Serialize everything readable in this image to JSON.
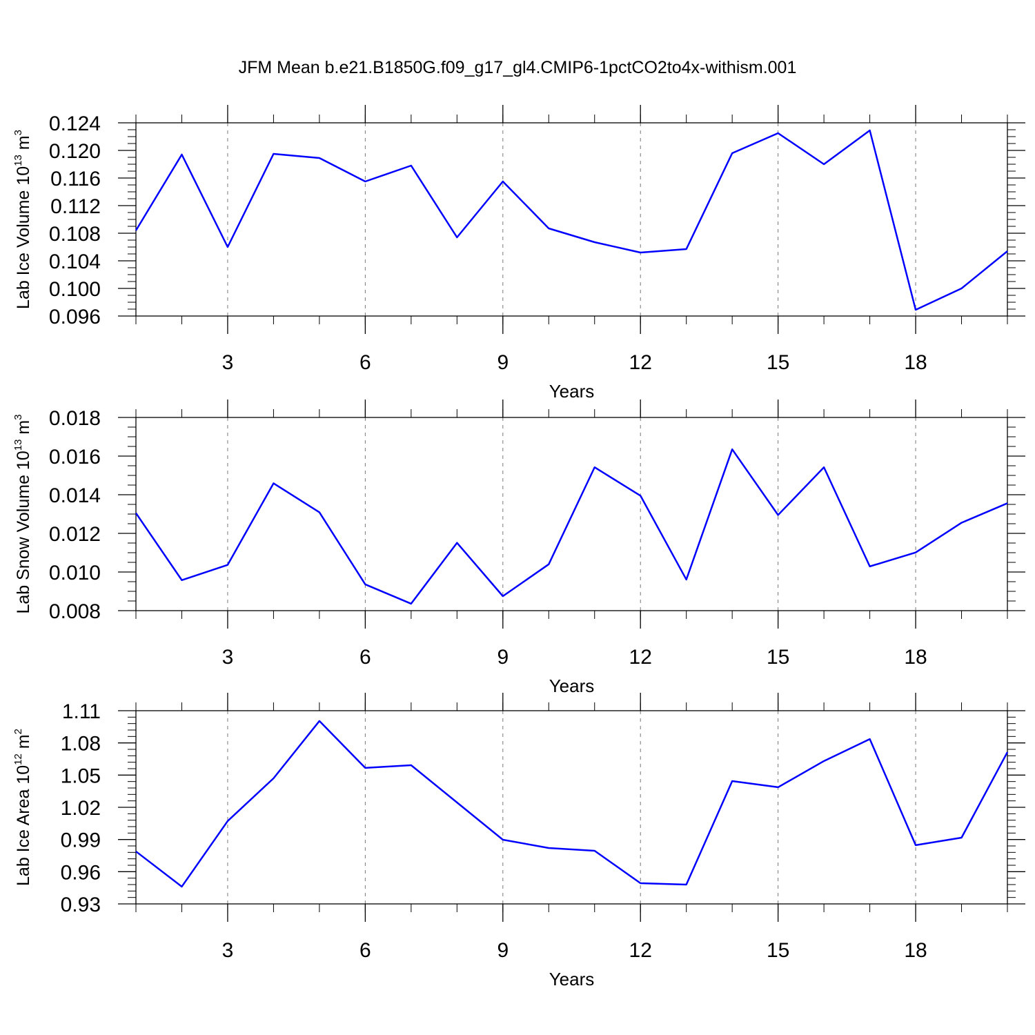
{
  "chart_data": [
    {
      "type": "line",
      "title": "JFM Mean b.e21.B1850G.f09_g17_gl4.CMIP6-1pctCO2to4x-withism.001",
      "ylabel": [
        "Lab Ice Volume 10",
        "13",
        " m",
        "3"
      ],
      "xlabel": "Years",
      "x": [
        1,
        2,
        3,
        4,
        5,
        6,
        7,
        8,
        9,
        10,
        11,
        12,
        13,
        14,
        15,
        16,
        17,
        18,
        19,
        20
      ],
      "values": [
        0.1084,
        0.1194,
        0.106,
        0.1195,
        0.1189,
        0.1155,
        0.1178,
        0.1074,
        0.1155,
        0.1087,
        0.1067,
        0.1052,
        0.1057,
        0.1196,
        0.1225,
        0.118,
        0.1229,
        0.0969,
        0.1,
        0.1054
      ],
      "color": "#0000ff",
      "xlim": [
        1,
        20
      ],
      "xticks": [
        3,
        6,
        9,
        12,
        15,
        18
      ],
      "ylim": [
        0.096,
        0.124
      ],
      "yticks": [
        0.096,
        {
          "value": 0.1,
          "label": "0.100"
        },
        0.104,
        0.108,
        0.112,
        0.116,
        {
          "value": 0.12,
          "label": "0.120"
        },
        0.124
      ],
      "grid": "x"
    },
    {
      "type": "line",
      "ylabel": [
        "Lab Snow Volume 10",
        "13",
        " m",
        "3"
      ],
      "xlabel": "Years",
      "x": [
        1,
        2,
        3,
        4,
        5,
        6,
        7,
        8,
        9,
        10,
        11,
        12,
        13,
        14,
        15,
        16,
        17,
        18,
        19,
        20
      ],
      "values": [
        0.01305,
        0.00958,
        0.01037,
        0.01459,
        0.01309,
        0.00936,
        0.00836,
        0.01151,
        0.00875,
        0.0104,
        0.01542,
        0.01395,
        0.00961,
        0.01635,
        0.01295,
        0.01542,
        0.01029,
        0.01101,
        0.01255,
        0.01356
      ],
      "color": "#0000ff",
      "xlim": [
        1,
        20
      ],
      "xticks": [
        3,
        6,
        9,
        12,
        15,
        18
      ],
      "ylim": [
        0.008,
        0.018
      ],
      "yticks": [
        0.008,
        {
          "value": 0.01,
          "label": "0.010"
        },
        {
          "value": 0.012,
          "label": "0.012"
        },
        {
          "value": 0.014,
          "label": "0.014"
        },
        {
          "value": 0.016,
          "label": "0.016"
        },
        {
          "value": 0.018,
          "label": "0.018"
        }
      ],
      "grid": "x"
    },
    {
      "type": "line",
      "ylabel": [
        "Lab Ice Area 10",
        "12",
        " m",
        "2"
      ],
      "xlabel": "Years",
      "x": [
        1,
        2,
        3,
        4,
        5,
        6,
        7,
        8,
        9,
        10,
        11,
        12,
        13,
        14,
        15,
        16,
        17,
        18,
        19,
        20
      ],
      "values": [
        0.9789,
        0.9461,
        1.0072,
        1.047,
        1.1004,
        1.0567,
        1.0592,
        1.0245,
        0.9898,
        0.9821,
        0.9795,
        0.9493,
        0.948,
        1.0444,
        1.0387,
        1.0631,
        1.0836,
        0.9847,
        0.9917,
        1.0714
      ],
      "color": "#0000ff",
      "xlim": [
        1,
        20
      ],
      "xticks": [
        3,
        6,
        9,
        12,
        15,
        18
      ],
      "ylim": [
        0.93,
        1.11
      ],
      "yticks": [
        0.93,
        0.96,
        0.99,
        1.02,
        1.05,
        1.08,
        1.11
      ],
      "grid": "x"
    }
  ]
}
